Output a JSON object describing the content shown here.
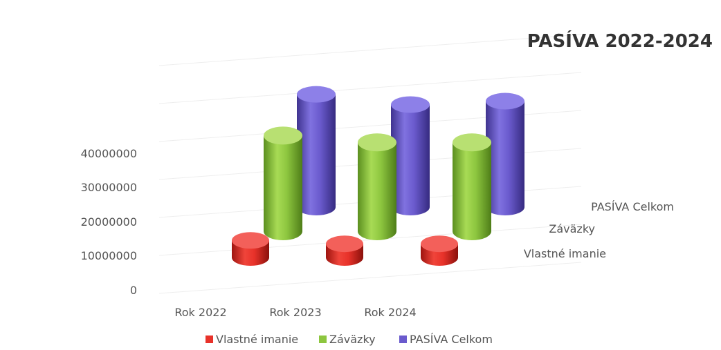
{
  "chart_data": {
    "type": "bar",
    "subtype": "3d-cylinder",
    "title": "PASÍVA 2022-2024",
    "categories": [
      "Rok 2022",
      "Rok 2023",
      "Rok 2024"
    ],
    "series": [
      {
        "name": "Vlastné imanie",
        "values": [
          5000000,
          4000000,
          4000000
        ],
        "color": "#e8322a"
      },
      {
        "name": "Záväzky",
        "values": [
          28000000,
          26000000,
          26000000
        ],
        "color": "#8dc63f"
      },
      {
        "name": "PASÍVA Celkom",
        "values": [
          33000000,
          30000000,
          31000000
        ],
        "color": "#6a5acd"
      }
    ],
    "y_ticks": [
      "0",
      "10000000",
      "20000000",
      "30000000",
      "40000000"
    ],
    "ylim": [
      0,
      40000000
    ],
    "legend": "bottom",
    "grid": true
  }
}
